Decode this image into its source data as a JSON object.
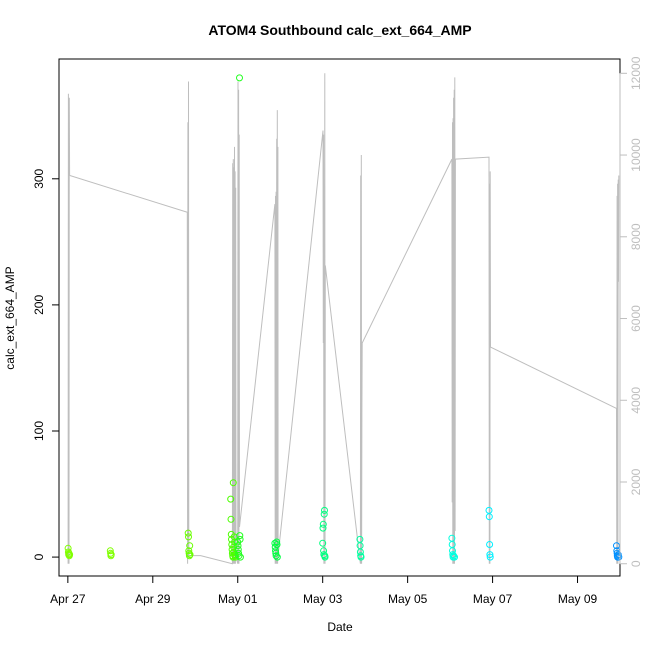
{
  "chart_data": {
    "type": "scatter",
    "title": "ATOM4 Southbound calc_ext_664_AMP",
    "xlabel": "Date",
    "ylabel": "calc_ext_664_AMP",
    "x_ticks": [
      "Apr 27",
      "Apr 29",
      "May 01",
      "May 03",
      "May 05",
      "May 07",
      "May 09"
    ],
    "y_ticks": [
      0,
      100,
      200,
      300
    ],
    "y_right_ticks": [
      0,
      2000,
      4000,
      6000,
      8000,
      10000,
      12000
    ],
    "xlim": [
      "2023-04-26T19:00",
      "2023-05-10T00:00"
    ],
    "ylim": [
      -15,
      395
    ],
    "y_right_lim": [
      -300,
      12350
    ],
    "colors": {
      "secondary_line": "#bebebe",
      "axis": "#000000",
      "right_axis": "#bebebe"
    },
    "secondary_series": {
      "name": "",
      "axis": "right",
      "points": [
        [
          "2023-04-27T00:10",
          0
        ],
        [
          "2023-04-27T00:20",
          11500
        ],
        [
          "2023-04-27T00:30",
          9800
        ],
        [
          "2023-04-27T00:40",
          0
        ],
        [
          "2023-04-27T00:50",
          11400
        ],
        [
          "2023-04-27T01:00",
          9500
        ],
        [
          "2023-04-27T01:10",
          9500
        ],
        [
          "2023-04-29T19:30",
          8600
        ],
        [
          "2023-04-29T19:40",
          0
        ],
        [
          "2023-04-29T19:50",
          10800
        ],
        [
          "2023-04-29T20:00",
          200
        ],
        [
          "2023-04-29T20:10",
          11800
        ],
        [
          "2023-04-29T20:20",
          200
        ],
        [
          "2023-04-30T03:00",
          200
        ],
        [
          "2023-04-30T21:00",
          0
        ],
        [
          "2023-04-30T21:10",
          9800
        ],
        [
          "2023-04-30T21:20",
          0
        ],
        [
          "2023-04-30T21:30",
          9900
        ],
        [
          "2023-04-30T21:40",
          0
        ],
        [
          "2023-04-30T21:50",
          9700
        ],
        [
          "2023-04-30T22:00",
          0
        ],
        [
          "2023-04-30T22:10",
          10200
        ],
        [
          "2023-04-30T22:20",
          0
        ],
        [
          "2023-04-30T22:30",
          9600
        ],
        [
          "2023-04-30T22:40",
          0
        ],
        [
          "2023-04-30T22:50",
          9200
        ],
        [
          "2023-04-30T23:00",
          200
        ],
        [
          "2023-05-01T00:00",
          0
        ],
        [
          "2023-05-01T00:10",
          11800
        ],
        [
          "2023-05-01T00:20",
          0
        ],
        [
          "2023-05-01T00:30",
          11600
        ],
        [
          "2023-05-01T00:40",
          0
        ],
        [
          "2023-05-01T00:50",
          10500
        ],
        [
          "2023-05-01T01:00",
          900
        ],
        [
          "2023-05-01T21:00",
          8800
        ],
        [
          "2023-05-01T21:10",
          0
        ],
        [
          "2023-05-01T21:20",
          9000
        ],
        [
          "2023-05-01T21:30",
          0
        ],
        [
          "2023-05-01T21:40",
          9100
        ],
        [
          "2023-05-01T21:50",
          0
        ],
        [
          "2023-05-01T22:00",
          10400
        ],
        [
          "2023-05-01T22:10",
          0
        ],
        [
          "2023-05-01T22:20",
          11100
        ],
        [
          "2023-05-01T22:30",
          0
        ],
        [
          "2023-05-01T22:40",
          10200
        ],
        [
          "2023-05-01T22:50",
          200
        ],
        [
          "2023-05-03T00:10",
          10600
        ],
        [
          "2023-05-03T00:20",
          5400
        ],
        [
          "2023-05-03T00:30",
          10500
        ],
        [
          "2023-05-03T00:40",
          0
        ],
        [
          "2023-05-03T00:50",
          8000
        ],
        [
          "2023-05-03T01:00",
          5500
        ],
        [
          "2023-05-03T01:10",
          12000
        ],
        [
          "2023-05-03T01:20",
          0
        ],
        [
          "2023-05-03T01:30",
          7300
        ],
        [
          "2023-05-03T21:20",
          0
        ],
        [
          "2023-05-03T21:30",
          9500
        ],
        [
          "2023-05-03T21:40",
          0
        ],
        [
          "2023-05-03T21:50",
          10000
        ],
        [
          "2023-05-03T22:00",
          0
        ],
        [
          "2023-05-03T22:10",
          3800
        ],
        [
          "2023-05-03T22:20",
          5400
        ],
        [
          "2023-05-06T01:00",
          9900
        ],
        [
          "2023-05-06T01:10",
          1500
        ],
        [
          "2023-05-06T01:20",
          10800
        ],
        [
          "2023-05-06T01:30",
          0
        ],
        [
          "2023-05-06T01:40",
          10900
        ],
        [
          "2023-05-06T01:50",
          0
        ],
        [
          "2023-05-06T02:00",
          11400
        ],
        [
          "2023-05-06T02:10",
          0
        ],
        [
          "2023-05-06T02:20",
          11600
        ],
        [
          "2023-05-06T02:30",
          0
        ],
        [
          "2023-05-06T02:40",
          11900
        ],
        [
          "2023-05-06T02:50",
          800
        ],
        [
          "2023-05-06T03:00",
          9900
        ],
        [
          "2023-05-06T22:00",
          9950
        ],
        [
          "2023-05-06T22:10",
          0
        ],
        [
          "2023-05-06T22:20",
          9300
        ],
        [
          "2023-05-06T22:30",
          0
        ],
        [
          "2023-05-06T22:40",
          9600
        ],
        [
          "2023-05-06T22:50",
          5300
        ],
        [
          "2023-05-09T22:00",
          3800
        ],
        [
          "2023-05-09T22:10",
          0
        ],
        [
          "2023-05-09T22:20",
          9000
        ],
        [
          "2023-05-09T22:30",
          0
        ],
        [
          "2023-05-09T22:40",
          9300
        ],
        [
          "2023-05-09T22:50",
          0
        ],
        [
          "2023-05-09T23:00",
          9400
        ],
        [
          "2023-05-09T23:10",
          6900
        ],
        [
          "2023-05-09T23:20",
          9500
        ]
      ]
    },
    "scatter_points": [
      {
        "x": "2023-04-27T00:10",
        "y": 7,
        "color": "#80ff00"
      },
      {
        "x": "2023-04-27T00:20",
        "y": 4,
        "color": "#80ff00"
      },
      {
        "x": "2023-04-27T00:30",
        "y": 2,
        "color": "#80ff00"
      },
      {
        "x": "2023-04-27T00:40",
        "y": 3,
        "color": "#80ff00"
      },
      {
        "x": "2023-04-27T00:50",
        "y": 1,
        "color": "#80ff00"
      },
      {
        "x": "2023-04-27T01:00",
        "y": 2,
        "color": "#80ff00"
      },
      {
        "x": "2023-04-28T00:00",
        "y": 5,
        "color": "#80ff00"
      },
      {
        "x": "2023-04-28T00:10",
        "y": 3,
        "color": "#80ff00"
      },
      {
        "x": "2023-04-28T00:20",
        "y": 1,
        "color": "#80ff00"
      },
      {
        "x": "2023-04-28T00:30",
        "y": 2,
        "color": "#80ff00"
      },
      {
        "x": "2023-04-29T20:00",
        "y": 19,
        "color": "#6aff00"
      },
      {
        "x": "2023-04-29T20:10",
        "y": 16,
        "color": "#6aff00"
      },
      {
        "x": "2023-04-29T20:20",
        "y": 5,
        "color": "#6aff00"
      },
      {
        "x": "2023-04-29T20:30",
        "y": 3,
        "color": "#6aff00"
      },
      {
        "x": "2023-04-29T20:40",
        "y": 1,
        "color": "#6aff00"
      },
      {
        "x": "2023-04-29T20:50",
        "y": 9,
        "color": "#6aff00"
      },
      {
        "x": "2023-04-29T21:00",
        "y": 2,
        "color": "#6aff00"
      },
      {
        "x": "2023-04-30T20:00",
        "y": 46,
        "color": "#4cff00"
      },
      {
        "x": "2023-04-30T20:10",
        "y": 30,
        "color": "#4cff00"
      },
      {
        "x": "2023-04-30T20:20",
        "y": 18,
        "color": "#4cff00"
      },
      {
        "x": "2023-04-30T20:30",
        "y": 14,
        "color": "#4cff00"
      },
      {
        "x": "2023-04-30T20:40",
        "y": 10,
        "color": "#4cff00"
      },
      {
        "x": "2023-04-30T20:50",
        "y": 6,
        "color": "#4cff00"
      },
      {
        "x": "2023-04-30T21:00",
        "y": 3,
        "color": "#4cff00"
      },
      {
        "x": "2023-04-30T21:10",
        "y": 1,
        "color": "#4cff00"
      },
      {
        "x": "2023-04-30T21:20",
        "y": 0,
        "color": "#4cff00"
      },
      {
        "x": "2023-04-30T21:30",
        "y": 59,
        "color": "#4cff00"
      },
      {
        "x": "2023-04-30T21:40",
        "y": 8,
        "color": "#4cff00"
      },
      {
        "x": "2023-04-30T21:50",
        "y": 4,
        "color": "#4cff00"
      },
      {
        "x": "2023-04-30T22:00",
        "y": 16,
        "color": "#4cff00"
      },
      {
        "x": "2023-04-30T22:10",
        "y": 12,
        "color": "#4cff00"
      },
      {
        "x": "2023-04-30T22:20",
        "y": 2,
        "color": "#4cff00"
      },
      {
        "x": "2023-04-30T22:30",
        "y": 1,
        "color": "#4cff00"
      },
      {
        "x": "2023-04-30T22:40",
        "y": 0,
        "color": "#4cff00"
      },
      {
        "x": "2023-05-01T00:00",
        "y": 12,
        "color": "#22ff20"
      },
      {
        "x": "2023-05-01T00:10",
        "y": 9,
        "color": "#22ff20"
      },
      {
        "x": "2023-05-01T00:20",
        "y": 6,
        "color": "#22ff20"
      },
      {
        "x": "2023-05-01T00:30",
        "y": 3,
        "color": "#22ff20"
      },
      {
        "x": "2023-05-01T00:40",
        "y": 1,
        "color": "#22ff20"
      },
      {
        "x": "2023-05-01T01:00",
        "y": 380,
        "color": "#22ff20"
      },
      {
        "x": "2023-05-01T01:10",
        "y": 17,
        "color": "#22ff20"
      },
      {
        "x": "2023-05-01T01:20",
        "y": 14,
        "color": "#22ff20"
      },
      {
        "x": "2023-05-01T01:30",
        "y": 0,
        "color": "#22ff20"
      },
      {
        "x": "2023-05-01T21:00",
        "y": 11,
        "color": "#00ff40"
      },
      {
        "x": "2023-05-01T21:10",
        "y": 8,
        "color": "#00ff40"
      },
      {
        "x": "2023-05-01T21:20",
        "y": 5,
        "color": "#00ff40"
      },
      {
        "x": "2023-05-01T21:30",
        "y": 3,
        "color": "#00ff40"
      },
      {
        "x": "2023-05-01T21:40",
        "y": 1,
        "color": "#00ff40"
      },
      {
        "x": "2023-05-01T22:00",
        "y": 12,
        "color": "#00ff40"
      },
      {
        "x": "2023-05-01T22:10",
        "y": 10,
        "color": "#00ff40"
      },
      {
        "x": "2023-05-01T22:20",
        "y": 0,
        "color": "#00ff40"
      },
      {
        "x": "2023-05-03T00:00",
        "y": 11,
        "color": "#00ff80"
      },
      {
        "x": "2023-05-03T00:10",
        "y": 23,
        "color": "#00ff80"
      },
      {
        "x": "2023-05-03T00:20",
        "y": 26,
        "color": "#00ff80"
      },
      {
        "x": "2023-05-03T00:30",
        "y": 5,
        "color": "#00ff80"
      },
      {
        "x": "2023-05-03T00:40",
        "y": 2,
        "color": "#00ff80"
      },
      {
        "x": "2023-05-03T00:50",
        "y": 34,
        "color": "#00ff80"
      },
      {
        "x": "2023-05-03T01:00",
        "y": 37,
        "color": "#00ff80"
      },
      {
        "x": "2023-05-03T01:10",
        "y": 1,
        "color": "#00ff80"
      },
      {
        "x": "2023-05-03T01:20",
        "y": 0,
        "color": "#00ff80"
      },
      {
        "x": "2023-05-03T21:00",
        "y": 14,
        "color": "#00ffa0"
      },
      {
        "x": "2023-05-03T21:10",
        "y": 9,
        "color": "#00ffa0"
      },
      {
        "x": "2023-05-03T21:20",
        "y": 4,
        "color": "#00ffa0"
      },
      {
        "x": "2023-05-03T21:30",
        "y": 1,
        "color": "#00ffa0"
      },
      {
        "x": "2023-05-03T21:40",
        "y": 0,
        "color": "#00ffa0"
      },
      {
        "x": "2023-05-06T01:00",
        "y": 15,
        "color": "#00ffe0"
      },
      {
        "x": "2023-05-06T01:10",
        "y": 10,
        "color": "#00ffe0"
      },
      {
        "x": "2023-05-06T01:20",
        "y": 5,
        "color": "#00ffe0"
      },
      {
        "x": "2023-05-06T01:30",
        "y": 2,
        "color": "#00ffe0"
      },
      {
        "x": "2023-05-06T01:40",
        "y": 0,
        "color": "#00ffe0"
      },
      {
        "x": "2023-05-06T02:00",
        "y": 1,
        "color": "#00ffe0"
      },
      {
        "x": "2023-05-06T02:30",
        "y": 0,
        "color": "#00ffe0"
      },
      {
        "x": "2023-05-06T22:00",
        "y": 37,
        "color": "#00f0ff"
      },
      {
        "x": "2023-05-06T22:10",
        "y": 32,
        "color": "#00f0ff"
      },
      {
        "x": "2023-05-06T22:20",
        "y": 10,
        "color": "#00f0ff"
      },
      {
        "x": "2023-05-06T22:30",
        "y": 2,
        "color": "#00f0ff"
      },
      {
        "x": "2023-05-06T22:40",
        "y": 0,
        "color": "#00f0ff"
      },
      {
        "x": "2023-05-09T22:00",
        "y": 9,
        "color": "#0090ff"
      },
      {
        "x": "2023-05-09T22:10",
        "y": 5,
        "color": "#0090ff"
      },
      {
        "x": "2023-05-09T22:20",
        "y": 3,
        "color": "#0090ff"
      },
      {
        "x": "2023-05-09T22:30",
        "y": 1,
        "color": "#0090ff"
      },
      {
        "x": "2023-05-09T22:40",
        "y": 0,
        "color": "#0090ff"
      },
      {
        "x": "2023-05-09T23:00",
        "y": 2,
        "color": "#0090ff"
      },
      {
        "x": "2023-05-09T23:20",
        "y": 0,
        "color": "#0090ff"
      }
    ]
  }
}
